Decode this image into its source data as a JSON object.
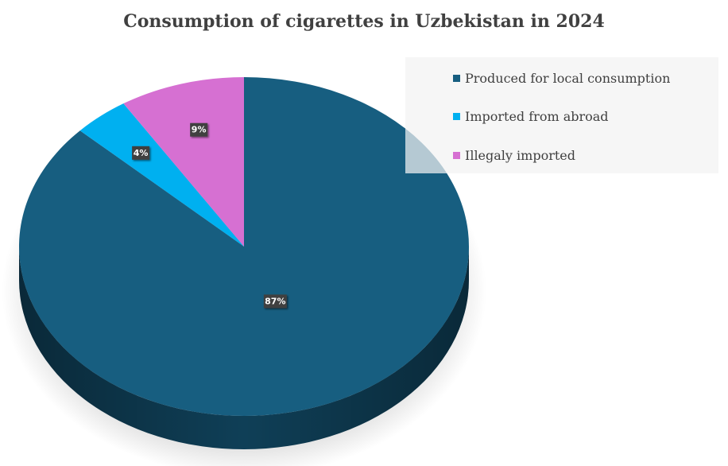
{
  "chart_data": {
    "type": "pie",
    "title": "Consumption of cigarettes in Uzbekistan in 2024",
    "three_d": true,
    "legend_position": "top-right",
    "slices": [
      {
        "name": "Produced for local consumption",
        "value": 87,
        "label": "87%",
        "color": "#175E80",
        "side_color": "#0F3F57"
      },
      {
        "name": "Imported from abroad",
        "value": 4,
        "label": "4%",
        "color": "#00B0F0",
        "side_color": "#0081B0"
      },
      {
        "name": "Illegaly imported",
        "value": 9,
        "label": "9%",
        "color": "#D670D2",
        "side_color": "#9C4F99"
      }
    ]
  }
}
